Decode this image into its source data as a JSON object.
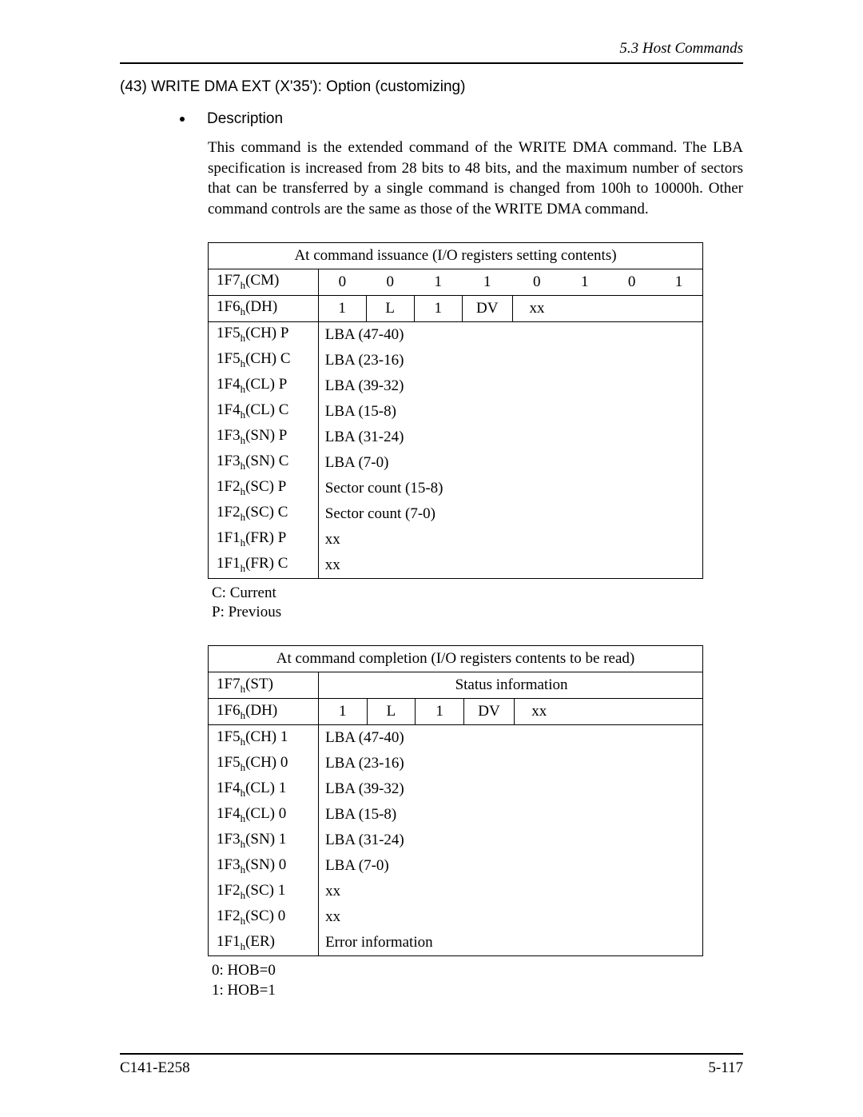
{
  "header": {
    "section": "5.3  Host Commands"
  },
  "title": "(43)  WRITE DMA EXT (X'35'):  Option (customizing)",
  "bullet": {
    "label": "Description"
  },
  "description": "This command is the extended command of the WRITE DMA command.  The LBA specification is increased from 28 bits to 48 bits, and the maximum number of sectors that can be transferred by a single command is changed from 100h to 10000h.  Other command controls are the same as those of the WRITE DMA command.",
  "table1": {
    "caption": "At command issuance (I/O registers setting contents)",
    "rows": {
      "cm": {
        "reg": "1F7",
        "suffix": "(CM)",
        "bits": [
          "0",
          "0",
          "1",
          "1",
          "0",
          "1",
          "0",
          "1"
        ]
      },
      "dh": {
        "reg": "1F6",
        "suffix": "(DH)",
        "bits": [
          "1",
          "L",
          "1",
          "DV",
          "xx"
        ]
      },
      "r1": {
        "reg": "1F5",
        "suffix": "(CH) P",
        "val": "LBA (47-40)"
      },
      "r2": {
        "reg": "1F5",
        "suffix": "(CH) C",
        "val": "LBA (23-16)"
      },
      "r3": {
        "reg": "1F4",
        "suffix": "(CL) P",
        "val": "LBA (39-32)"
      },
      "r4": {
        "reg": "1F4",
        "suffix": "(CL) C",
        "val": "LBA (15-8)"
      },
      "r5": {
        "reg": "1F3",
        "suffix": "(SN) P",
        "val": "LBA (31-24)"
      },
      "r6": {
        "reg": "1F3",
        "suffix": "(SN) C",
        "val": "LBA (7-0)"
      },
      "r7": {
        "reg": "1F2",
        "suffix": "(SC) P",
        "val": "Sector count (15-8)"
      },
      "r8": {
        "reg": "1F2",
        "suffix": "(SC) C",
        "val": "Sector count (7-0)"
      },
      "r9": {
        "reg": "1F1",
        "suffix": "(FR) P",
        "val": "xx"
      },
      "r10": {
        "reg": "1F1",
        "suffix": "(FR) C",
        "val": "xx"
      }
    },
    "legend": {
      "l1": "C:  Current",
      "l2": "P:  Previous"
    }
  },
  "table2": {
    "caption": "At command completion (I/O registers contents to be read)",
    "rows": {
      "st": {
        "reg": "1F7",
        "suffix": "(ST)",
        "val": "Status information"
      },
      "dh": {
        "reg": "1F6",
        "suffix": "(DH)",
        "bits": [
          "1",
          "L",
          "1",
          "DV",
          "xx"
        ]
      },
      "r1": {
        "reg": "1F5",
        "suffix": "(CH) 1",
        "val": "LBA (47-40)"
      },
      "r2": {
        "reg": "1F5",
        "suffix": "(CH) 0",
        "val": "LBA (23-16)"
      },
      "r3": {
        "reg": "1F4",
        "suffix": "(CL) 1",
        "val": "LBA (39-32)"
      },
      "r4": {
        "reg": "1F4",
        "suffix": "(CL) 0",
        "val": "LBA (15-8)"
      },
      "r5": {
        "reg": "1F3",
        "suffix": "(SN) 1",
        "val": "LBA (31-24)"
      },
      "r6": {
        "reg": "1F3",
        "suffix": "(SN) 0",
        "val": "LBA (7-0)"
      },
      "r7": {
        "reg": "1F2",
        "suffix": "(SC) 1",
        "val": "xx"
      },
      "r8": {
        "reg": "1F2",
        "suffix": "(SC) 0",
        "val": "xx"
      },
      "r9": {
        "reg": "1F1",
        "suffix": "(ER)",
        "val": "Error information"
      }
    },
    "legend": {
      "l1": "0:  HOB=0",
      "l2": "1:  HOB=1"
    }
  },
  "footer": {
    "left": "C141-E258",
    "right": "5-117"
  },
  "sub_h": "h"
}
